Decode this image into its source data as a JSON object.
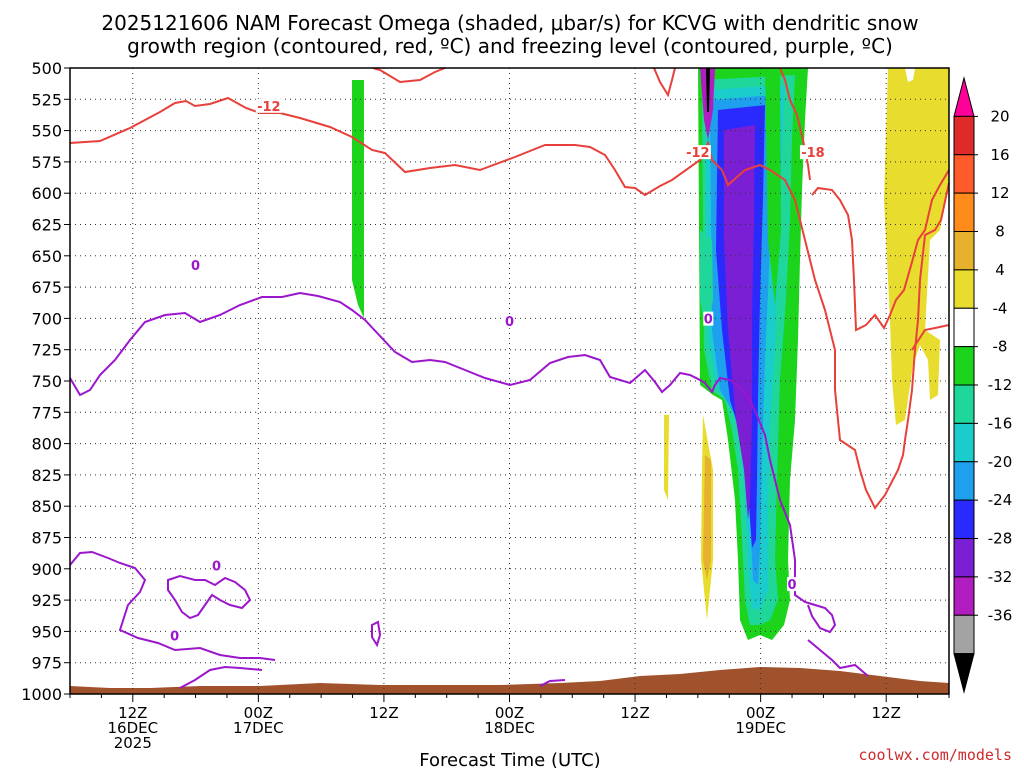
{
  "chart_data": {
    "type": "time-height",
    "title_line1": "2025121606 NAM Forecast Omega (shaded, μbar/s) for KCVG with dendritic snow",
    "title_line2": "growth region (contoured, red, ºC) and freezing level (contoured, purple, ºC)",
    "xlabel": "Forecast Time (UTC)",
    "y_ticks": [
      500,
      525,
      550,
      575,
      600,
      625,
      650,
      675,
      700,
      725,
      750,
      775,
      800,
      825,
      850,
      875,
      900,
      925,
      950,
      975,
      1000
    ],
    "y_tick_labels": [
      "500",
      "525",
      "550",
      "575",
      "600",
      "625",
      "650",
      "675",
      "700",
      "725",
      "750",
      "775",
      "800",
      "825",
      "850",
      "875",
      "900",
      "925",
      "950",
      "975",
      "1000"
    ],
    "ylim": [
      1000,
      500
    ],
    "x_range_hours": [
      6,
      90
    ],
    "x_ticks": [
      {
        "hour": 12,
        "lines": [
          "12Z",
          "16DEC",
          "2025"
        ]
      },
      {
        "hour": 24,
        "lines": [
          "00Z",
          "17DEC"
        ]
      },
      {
        "hour": 36,
        "lines": [
          "12Z"
        ]
      },
      {
        "hour": 48,
        "lines": [
          "00Z",
          "18DEC"
        ]
      },
      {
        "hour": 60,
        "lines": [
          "12Z"
        ]
      },
      {
        "hour": 72,
        "lines": [
          "00Z",
          "19DEC"
        ]
      },
      {
        "hour": 84,
        "lines": [
          "12Z"
        ]
      }
    ],
    "colorbar": {
      "labels": [
        "20",
        "16",
        "12",
        "8",
        "4",
        "-4",
        "-8",
        "-12",
        "-16",
        "-20",
        "-24",
        "-28",
        "-32",
        "-36"
      ],
      "bounds": [
        20,
        16,
        12,
        8,
        4,
        -4,
        -8,
        -12,
        -16,
        -20,
        -24,
        -28,
        -32,
        -36
      ],
      "colors": [
        "#ff0099",
        "#e02a2a",
        "#ff5a2a",
        "#ff8c1a",
        "#e6b22e",
        "#e8dc2e",
        "#ffffff",
        "#1bd41b",
        "#1fd79a",
        "#1bcccc",
        "#1fa0ef",
        "#2a2aff",
        "#7a1fd4",
        "#b01ec0",
        "#a3a3a3",
        "#000000"
      ]
    },
    "contour_labels": [
      {
        "text": "-12",
        "color": "#e8403a",
        "hour": 25,
        "p": 531
      },
      {
        "text": "-12",
        "color": "#e8403a",
        "hour": 66,
        "p": 568
      },
      {
        "text": "-18",
        "color": "#e8403a",
        "hour": 77,
        "p": 568
      },
      {
        "text": "0",
        "color": "#9b16cc",
        "hour": 18,
        "p": 658
      },
      {
        "text": "0",
        "color": "#9b16cc",
        "hour": 48,
        "p": 703
      },
      {
        "text": "0",
        "color": "#9b16cc",
        "hour": 67,
        "p": 701
      },
      {
        "text": "0",
        "color": "#9b16cc",
        "hour": 20,
        "p": 898
      },
      {
        "text": "0",
        "color": "#9b16cc",
        "hour": 16,
        "p": 954
      },
      {
        "text": "0",
        "color": "#9b16cc",
        "hour": 75,
        "p": 913
      }
    ],
    "credit": "coolwx.com/models"
  }
}
